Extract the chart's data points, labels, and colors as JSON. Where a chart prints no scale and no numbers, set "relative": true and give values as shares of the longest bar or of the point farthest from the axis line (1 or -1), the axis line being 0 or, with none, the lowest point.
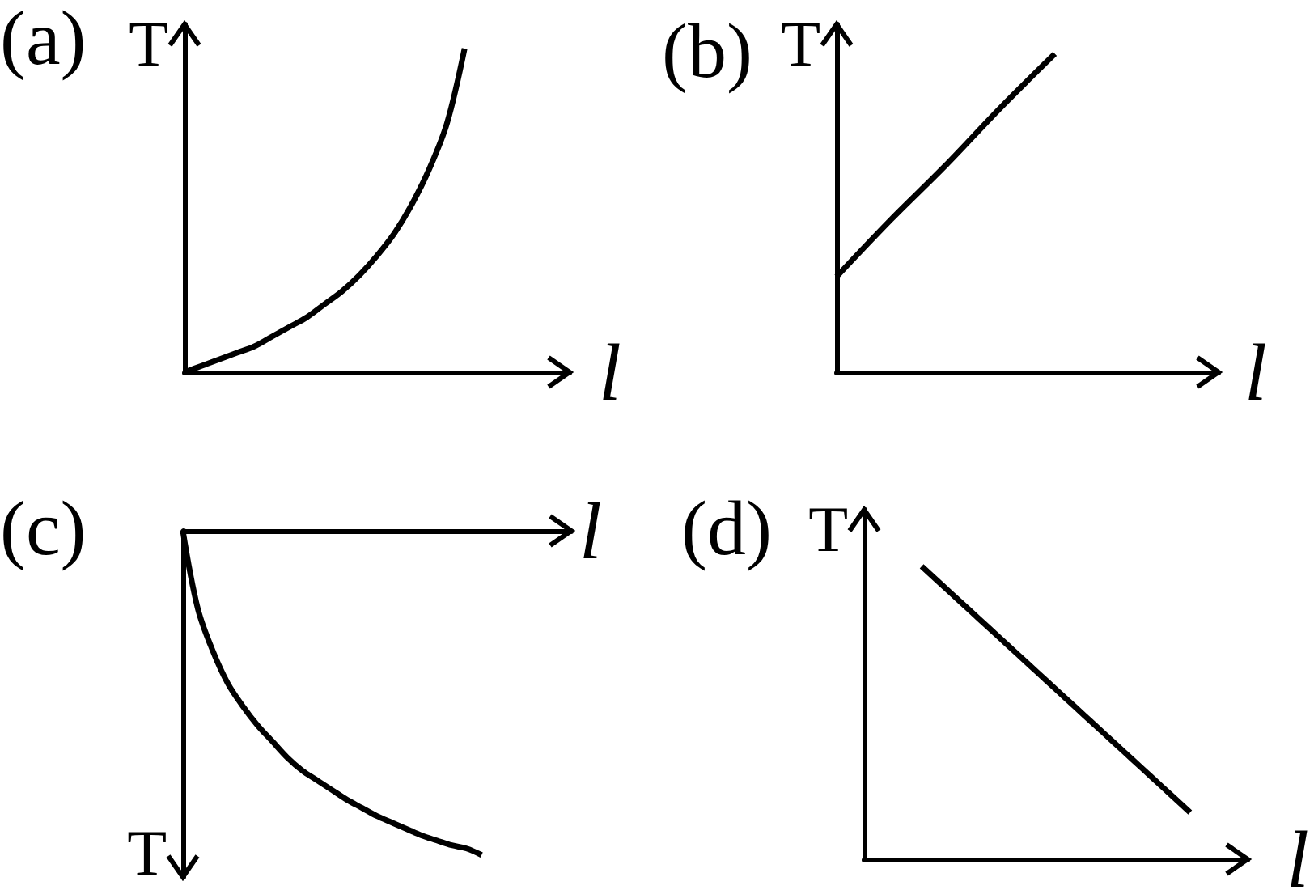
{
  "chart_data": [
    {
      "type": "line",
      "title": "(a)",
      "xlabel": "l",
      "ylabel": "T",
      "relative": true,
      "color": "#000000",
      "categories": [
        null,
        null,
        null,
        null,
        null,
        null,
        null,
        null,
        null,
        null,
        null,
        null,
        null,
        null,
        null,
        null,
        null,
        null,
        null,
        null,
        null,
        null,
        null
      ],
      "values": [
        0,
        0.02,
        0.04,
        0.06,
        0.08,
        0.11,
        0.14,
        0.17,
        0.21,
        0.25,
        0.3,
        0.36,
        0.43,
        0.52,
        0.63,
        0.77,
        1,
        null,
        null,
        null,
        null,
        null,
        null
      ]
    },
    {
      "type": "line",
      "title": "(b)",
      "xlabel": "l",
      "ylabel": "T",
      "relative": true,
      "color": "#000000",
      "categories": [
        null,
        null,
        null,
        null,
        null,
        null,
        null,
        null
      ],
      "values": [
        0.3,
        0.48,
        0.65,
        0.83,
        1,
        null,
        null,
        null
      ]
    },
    {
      "type": "line",
      "title": "(c)",
      "xlabel": "l",
      "ylabel": "T",
      "relative": true,
      "color": "#000000",
      "categories": [
        null,
        null,
        null,
        null,
        null,
        null,
        null,
        null,
        null,
        null,
        null,
        null,
        null,
        null,
        null,
        null,
        null,
        null,
        null,
        null,
        null,
        null,
        null,
        null,
        null,
        null,
        null
      ],
      "values": [
        0,
        -0.24,
        -0.37,
        -0.47,
        -0.54,
        -0.6,
        -0.65,
        -0.7,
        -0.74,
        -0.77,
        -0.8,
        -0.83,
        -0.855,
        -0.88,
        -0.9,
        -0.92,
        -0.94,
        -0.955,
        -0.97,
        -0.98,
        -1,
        null,
        null,
        null,
        null,
        null,
        null
      ]
    },
    {
      "type": "line",
      "title": "(d)",
      "xlabel": "l",
      "ylabel": "T",
      "relative": true,
      "color": "#000000",
      "categories": [
        null,
        null,
        null,
        null,
        null,
        null,
        null,
        null,
        null,
        null,
        null,
        null,
        null,
        null,
        null,
        null,
        null,
        null,
        null,
        null,
        null
      ],
      "values": [
        null,
        null,
        null,
        1,
        0.94,
        0.88,
        0.82,
        0.76,
        0.7,
        0.64,
        0.58,
        0.52,
        0.46,
        0.4,
        0.34,
        0.28,
        0.22,
        0.16,
        null,
        null,
        null
      ]
    }
  ]
}
